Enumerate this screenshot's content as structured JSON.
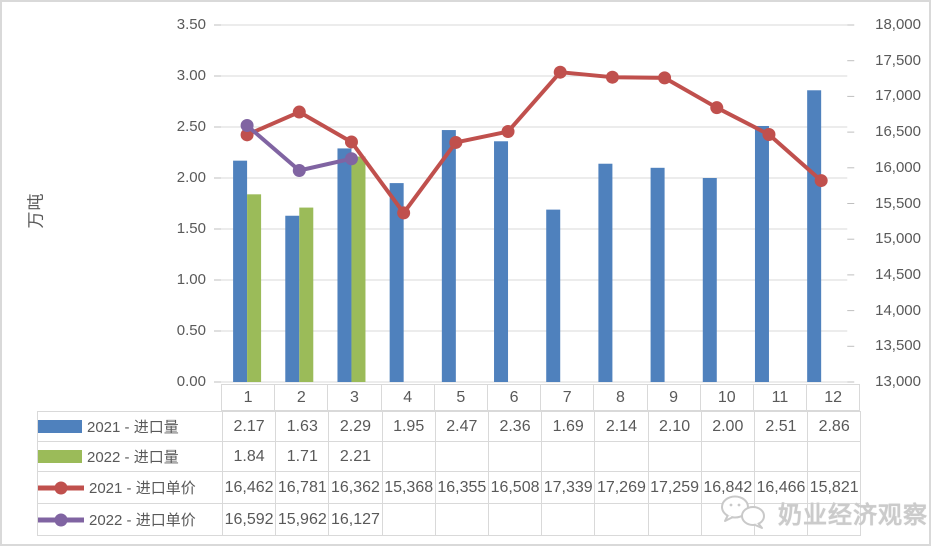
{
  "watermark": {
    "text": "奶业经济观察",
    "icon": "wechat-bubbles-icon"
  },
  "colors": {
    "bar_2021": "#4F81BD",
    "bar_2022": "#9BBB59",
    "line_2021": "#C0504D",
    "line_2022": "#8064A2",
    "gridline": "#D9D9D9",
    "axis_text": "#595959",
    "table_border": "#D9D9D9"
  },
  "chart_data": {
    "type": "bar",
    "subtype": "combo-bar-line",
    "title": "",
    "categories": [
      "1",
      "2",
      "3",
      "4",
      "5",
      "6",
      "7",
      "8",
      "9",
      "10",
      "11",
      "12"
    ],
    "left_axis": {
      "title": "万吨",
      "min": 0,
      "max": 3.5,
      "step": 0.5,
      "ticks": [
        "3.50",
        "3.00",
        "2.50",
        "2.00",
        "1.50",
        "1.00",
        "0.50",
        "0.00"
      ]
    },
    "right_axis": {
      "min": 13000,
      "max": 18000,
      "step": 500,
      "ticks": [
        "18,000",
        "17,500",
        "17,000",
        "16,500",
        "16,000",
        "15,500",
        "15,000",
        "14,500",
        "14,000",
        "13,500",
        "13,000"
      ]
    },
    "grid": true,
    "legend_position": "table-left",
    "series": [
      {
        "name": "2021 - 进口量",
        "type": "bar",
        "axis": "left",
        "color": "#4F81BD",
        "values": [
          2.17,
          1.63,
          2.29,
          1.95,
          2.47,
          2.36,
          1.69,
          2.14,
          2.1,
          2.0,
          2.51,
          2.86
        ],
        "display": [
          "2.17",
          "1.63",
          "2.29",
          "1.95",
          "2.47",
          "2.36",
          "1.69",
          "2.14",
          "2.10",
          "2.00",
          "2.51",
          "2.86"
        ]
      },
      {
        "name": "2022 - 进口量",
        "type": "bar",
        "axis": "left",
        "color": "#9BBB59",
        "values": [
          1.84,
          1.71,
          2.21,
          null,
          null,
          null,
          null,
          null,
          null,
          null,
          null,
          null
        ],
        "display": [
          "1.84",
          "1.71",
          "2.21",
          "",
          "",
          "",
          "",
          "",
          "",
          "",
          "",
          ""
        ]
      },
      {
        "name": "2021 - 进口单价",
        "type": "line",
        "axis": "right",
        "color": "#C0504D",
        "values": [
          16462,
          16781,
          16362,
          15368,
          16355,
          16508,
          17339,
          17269,
          17259,
          16842,
          16466,
          15821
        ],
        "display": [
          "16,462",
          "16,781",
          "16,362",
          "15,368",
          "16,355",
          "16,508",
          "17,339",
          "17,269",
          "17,259",
          "16,842",
          "16,466",
          "15,821"
        ]
      },
      {
        "name": "2022 - 进口单价",
        "type": "line",
        "axis": "right",
        "color": "#8064A2",
        "values": [
          16592,
          15962,
          16127,
          null,
          null,
          null,
          null,
          null,
          null,
          null,
          null,
          null
        ],
        "display": [
          "16,592",
          "15,962",
          "16,127",
          "",
          "",
          "",
          "",
          "",
          "",
          "",
          "",
          ""
        ]
      }
    ]
  }
}
